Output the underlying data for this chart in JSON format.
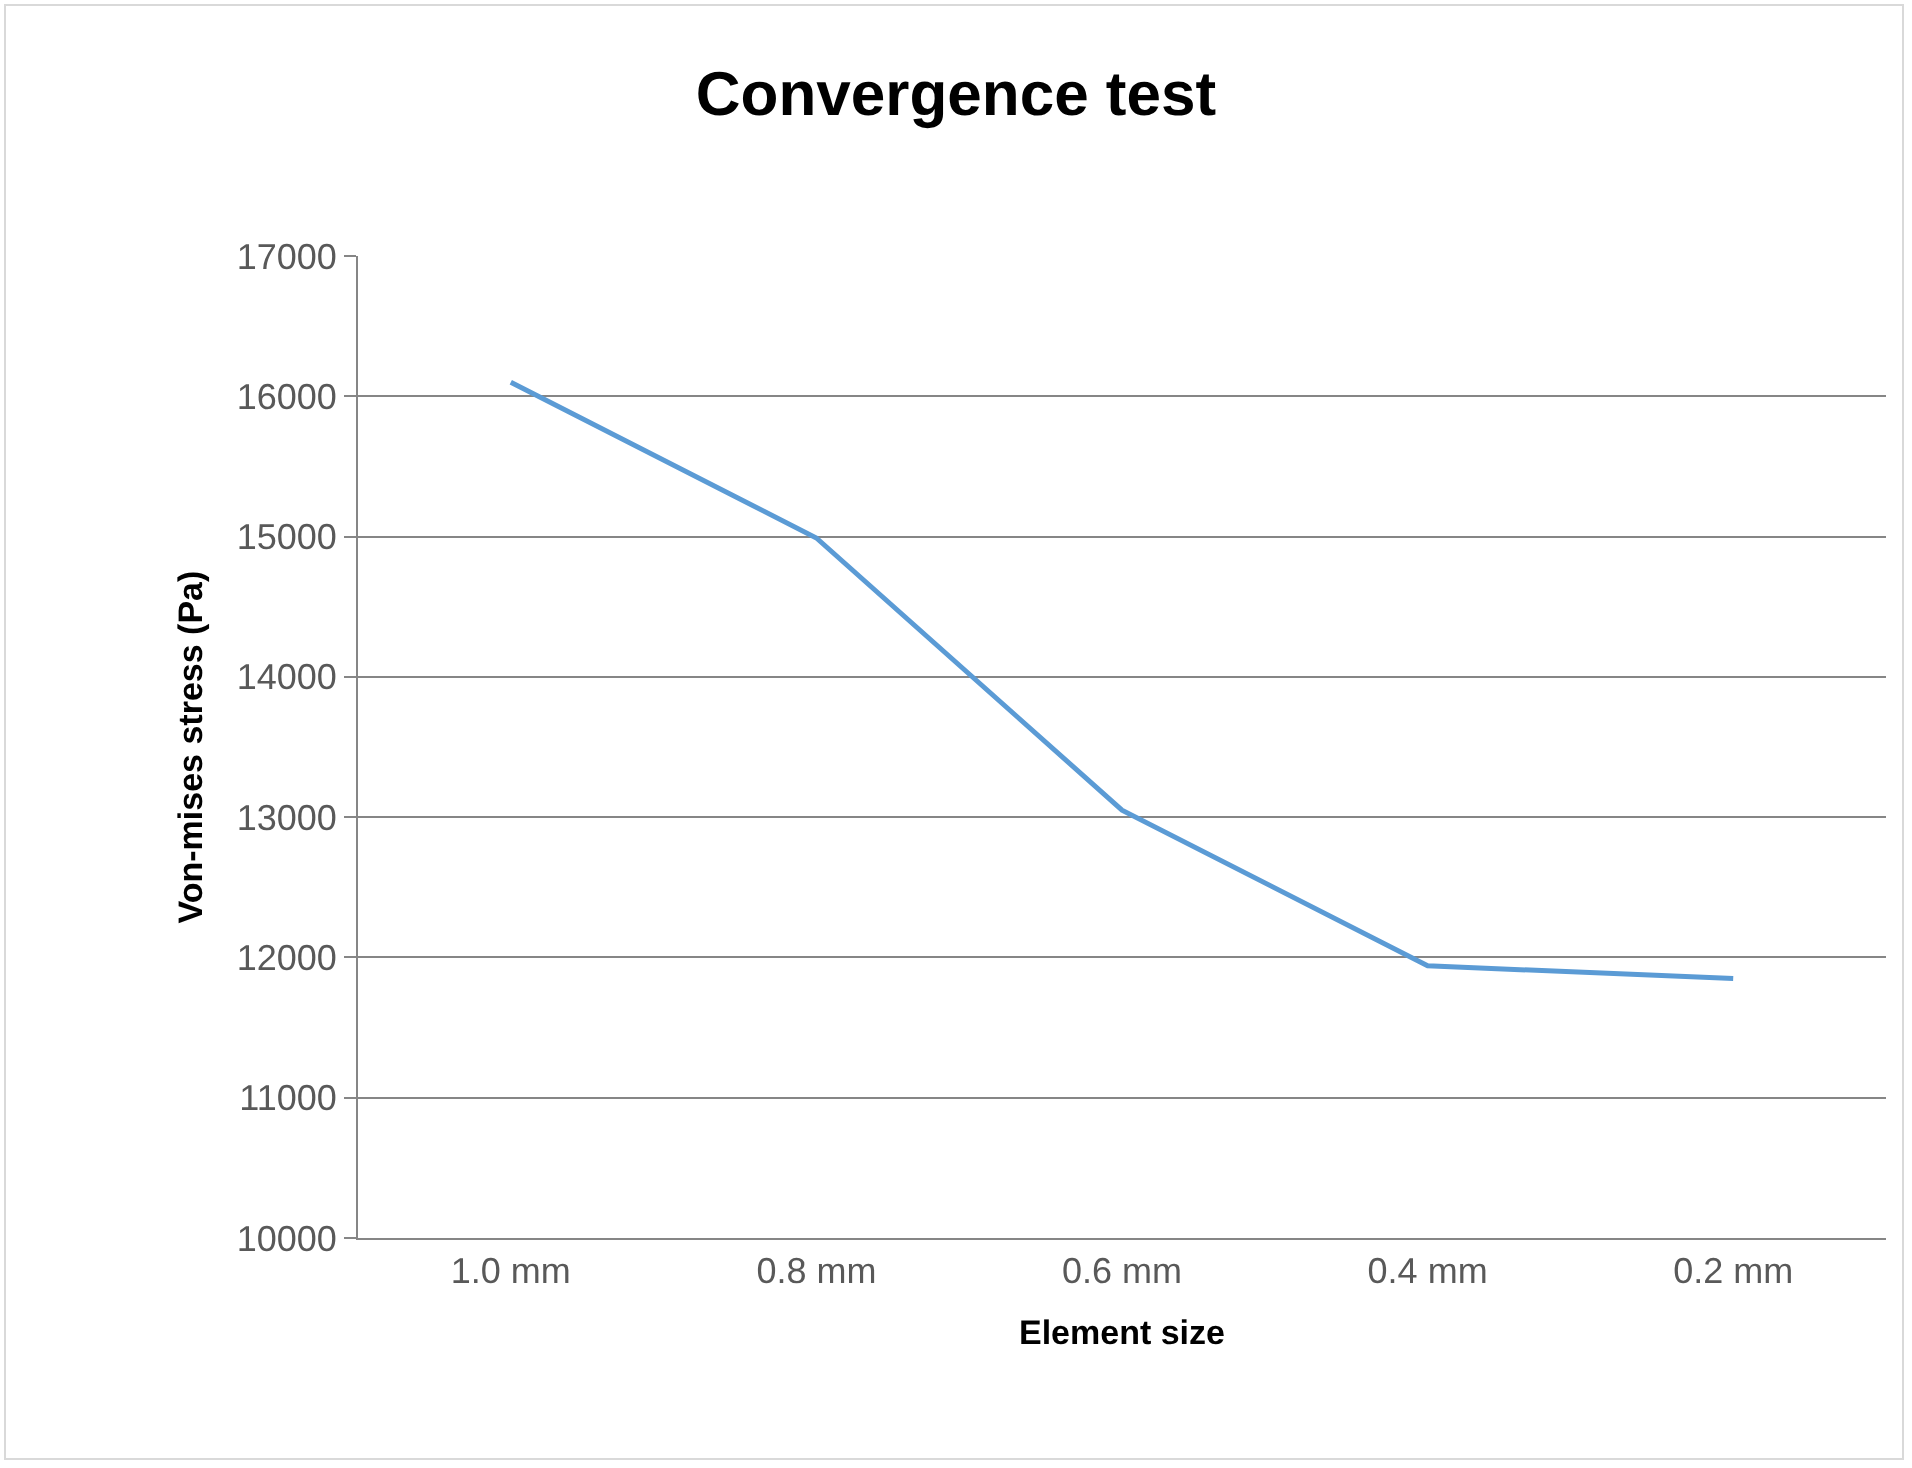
{
  "chart_data": {
    "type": "line",
    "title": "Convergence test",
    "xlabel": "Element size",
    "ylabel": "Von-mises stress (Pa)",
    "categories": [
      "1.0 mm",
      "0.8 mm",
      "0.6 mm",
      "0.4 mm",
      "0.2 mm"
    ],
    "series": [
      {
        "color": "#5b9bd5",
        "values": [
          16100,
          14990,
          13050,
          11940,
          11850
        ]
      }
    ],
    "ylim": [
      10000,
      17000
    ],
    "yticks": [
      10000,
      11000,
      12000,
      13000,
      14000,
      15000,
      16000,
      17000
    ],
    "grid": "y",
    "marker": "none",
    "line_style": "solid"
  }
}
